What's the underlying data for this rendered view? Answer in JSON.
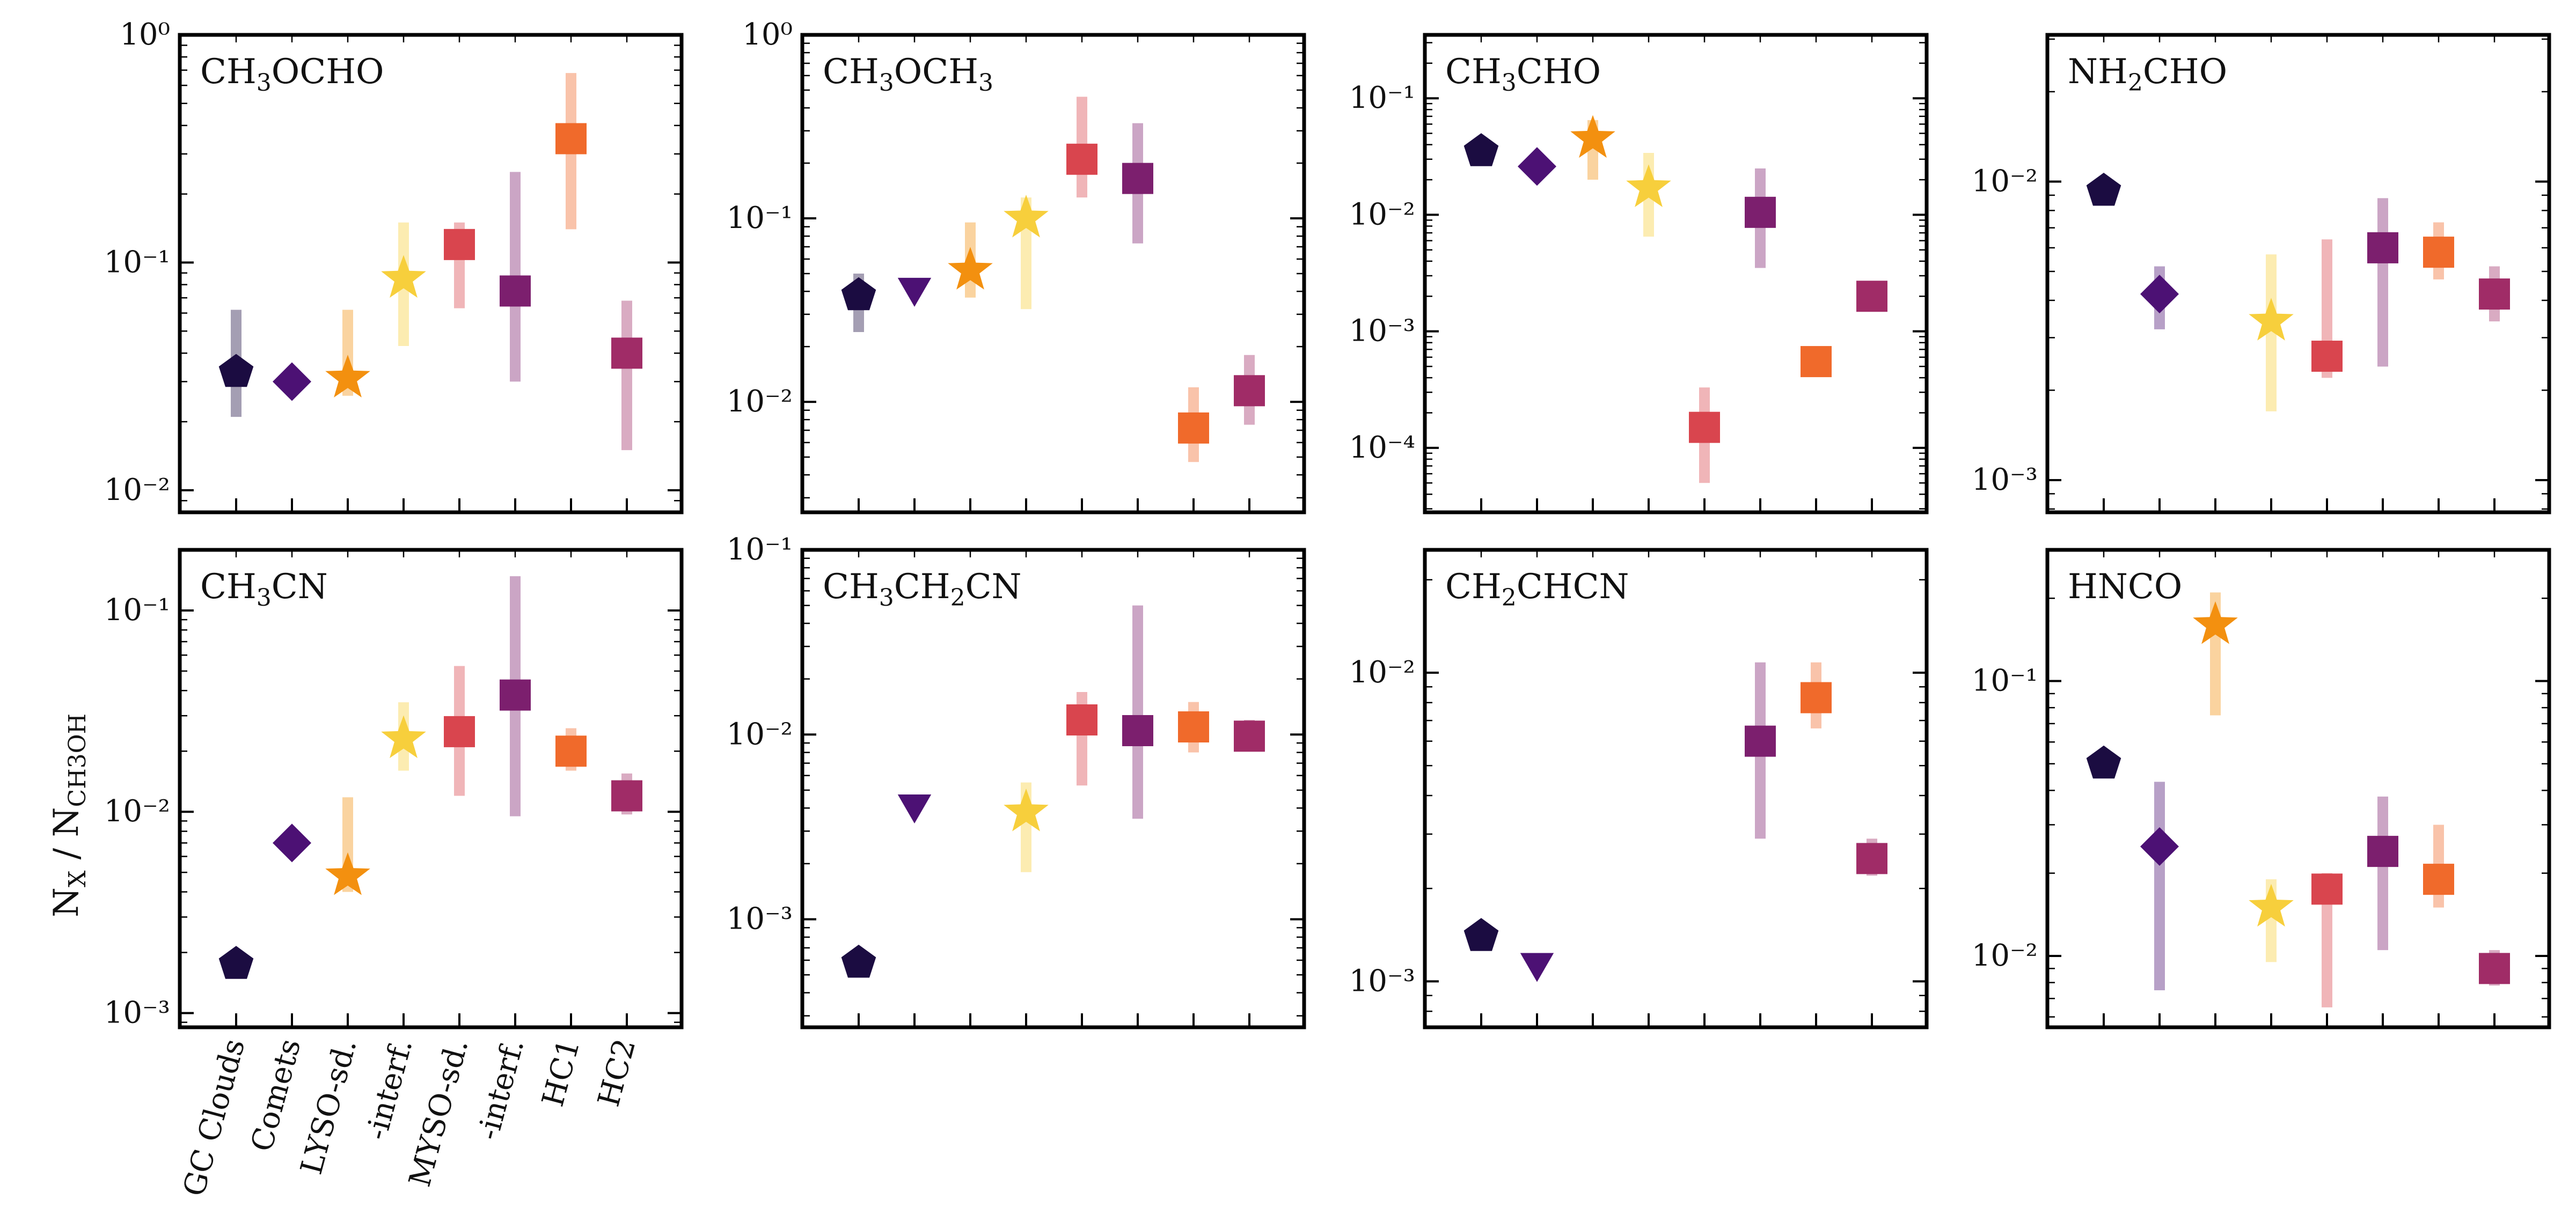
{
  "chart_data": {
    "type": "scatter",
    "layout": "2x4 grid of panels with shared categorical x-axis",
    "ylabel": "N_X / N_CH3OH",
    "ylabel_parts": {
      "main": "N",
      "sub1": "X",
      "sep": " / N",
      "sub2": "CH3OH"
    },
    "yscale": "log",
    "categories": [
      "GC Clouds",
      "Comets",
      "LYSO-sd.",
      "-interf.",
      "MYSO-sd.",
      "-interf.",
      "HC1",
      "HC2"
    ],
    "marker_legend": {
      "GC Clouds": "pentagon",
      "Comets": "diamond (triangle-down = upper limit)",
      "LYSO-sd.": "star",
      "LYSO-interf.": "star",
      "MYSO-sd.": "square",
      "MYSO-interf.": "square",
      "HC1": "square",
      "HC2": "square"
    },
    "colors": [
      "#1b0c41",
      "#4c1174",
      "#f3900f",
      "#f7cf3c",
      "#d9454e",
      "#7c1f6e",
      "#f06a2b",
      "#a02c67"
    ],
    "panels": [
      {
        "molecule": "CH3OCHO",
        "label_parts": [
          "CH",
          "3",
          "OCHO"
        ],
        "ylim": [
          0.008,
          1
        ],
        "ytick_decades": [
          -2,
          -1,
          0
        ],
        "points": [
          {
            "cat": 0,
            "value": 0.033,
            "low": 0.021,
            "high": 0.062,
            "marker": "pentagon"
          },
          {
            "cat": 1,
            "value": 0.03,
            "marker": "diamond"
          },
          {
            "cat": 2,
            "value": 0.031,
            "low": 0.026,
            "high": 0.062,
            "marker": "star"
          },
          {
            "cat": 3,
            "value": 0.085,
            "low": 0.043,
            "high": 0.15,
            "marker": "star"
          },
          {
            "cat": 4,
            "value": 0.12,
            "low": 0.063,
            "high": 0.15,
            "marker": "square"
          },
          {
            "cat": 5,
            "value": 0.075,
            "low": 0.03,
            "high": 0.25,
            "marker": "square"
          },
          {
            "cat": 6,
            "value": 0.35,
            "low": 0.14,
            "high": 0.68,
            "marker": "square"
          },
          {
            "cat": 7,
            "value": 0.04,
            "low": 0.015,
            "high": 0.068,
            "marker": "square"
          }
        ]
      },
      {
        "molecule": "CH3OCH3",
        "label_parts": [
          "CH",
          "3",
          "OCH",
          "3"
        ],
        "ylim": [
          0.0025,
          1
        ],
        "ytick_decades": [
          -2,
          -1,
          0
        ],
        "points": [
          {
            "cat": 0,
            "value": 0.038,
            "low": 0.024,
            "high": 0.05,
            "marker": "pentagon"
          },
          {
            "cat": 1,
            "value": 0.042,
            "marker": "triangle-down"
          },
          {
            "cat": 2,
            "value": 0.052,
            "low": 0.037,
            "high": 0.095,
            "marker": "star"
          },
          {
            "cat": 3,
            "value": 0.1,
            "low": 0.032,
            "high": 0.13,
            "marker": "star"
          },
          {
            "cat": 4,
            "value": 0.21,
            "low": 0.13,
            "high": 0.46,
            "marker": "square"
          },
          {
            "cat": 5,
            "value": 0.165,
            "low": 0.073,
            "high": 0.33,
            "marker": "square"
          },
          {
            "cat": 6,
            "value": 0.0072,
            "low": 0.0047,
            "high": 0.012,
            "marker": "square"
          },
          {
            "cat": 7,
            "value": 0.0115,
            "low": 0.0075,
            "high": 0.018,
            "marker": "square"
          }
        ]
      },
      {
        "molecule": "CH3CHO",
        "label_parts": [
          "CH",
          "3",
          "CHO"
        ],
        "ylim": [
          2.8e-05,
          0.35
        ],
        "ytick_decades": [
          -4,
          -3,
          -2,
          -1
        ],
        "points": [
          {
            "cat": 0,
            "value": 0.035,
            "marker": "pentagon"
          },
          {
            "cat": 1,
            "value": 0.026,
            "marker": "diamond"
          },
          {
            "cat": 2,
            "value": 0.045,
            "low": 0.02,
            "high": 0.065,
            "marker": "star"
          },
          {
            "cat": 3,
            "value": 0.017,
            "low": 0.0065,
            "high": 0.034,
            "marker": "star"
          },
          {
            "cat": 4,
            "value": 0.00015,
            "low": 5e-05,
            "high": 0.00033,
            "marker": "square"
          },
          {
            "cat": 5,
            "value": 0.0105,
            "low": 0.0035,
            "high": 0.025,
            "marker": "square"
          },
          {
            "cat": 6,
            "value": 0.00055,
            "marker": "square"
          },
          {
            "cat": 7,
            "value": 0.002,
            "marker": "square"
          }
        ]
      },
      {
        "molecule": "NH2CHO",
        "label_parts": [
          "NH",
          "2",
          "CHO"
        ],
        "ylim": [
          0.00078,
          0.031
        ],
        "ytick_decades": [
          -3,
          -2
        ],
        "points": [
          {
            "cat": 0,
            "value": 0.0093,
            "marker": "pentagon"
          },
          {
            "cat": 1,
            "value": 0.0042,
            "low": 0.0032,
            "high": 0.0052,
            "marker": "diamond"
          },
          {
            "cat": 3,
            "value": 0.0034,
            "low": 0.0017,
            "high": 0.0057,
            "marker": "star"
          },
          {
            "cat": 4,
            "value": 0.0026,
            "low": 0.0022,
            "high": 0.0064,
            "marker": "square"
          },
          {
            "cat": 5,
            "value": 0.006,
            "low": 0.0024,
            "high": 0.0088,
            "marker": "square"
          },
          {
            "cat": 6,
            "value": 0.0058,
            "low": 0.0047,
            "high": 0.0073,
            "marker": "square"
          },
          {
            "cat": 7,
            "value": 0.0042,
            "low": 0.0034,
            "high": 0.0052,
            "marker": "square"
          }
        ]
      },
      {
        "molecule": "CH3CN",
        "label_parts": [
          "CH",
          "3",
          "CN"
        ],
        "ylim": [
          0.00085,
          0.2
        ],
        "ytick_decades": [
          -3,
          -2,
          -1
        ],
        "points": [
          {
            "cat": 0,
            "value": 0.00175,
            "marker": "pentagon"
          },
          {
            "cat": 1,
            "value": 0.007,
            "low": 0.006,
            "high": 0.0082,
            "marker": "diamond"
          },
          {
            "cat": 2,
            "value": 0.0048,
            "low": 0.004,
            "high": 0.0118,
            "marker": "star"
          },
          {
            "cat": 3,
            "value": 0.023,
            "low": 0.016,
            "high": 0.035,
            "marker": "star"
          },
          {
            "cat": 4,
            "value": 0.025,
            "low": 0.012,
            "high": 0.053,
            "marker": "square"
          },
          {
            "cat": 5,
            "value": 0.038,
            "low": 0.0095,
            "high": 0.148,
            "marker": "square"
          },
          {
            "cat": 6,
            "value": 0.02,
            "low": 0.016,
            "high": 0.026,
            "marker": "square"
          },
          {
            "cat": 7,
            "value": 0.012,
            "low": 0.0097,
            "high": 0.0155,
            "marker": "square"
          }
        ]
      },
      {
        "molecule": "CH3CH2CN",
        "label_parts": [
          "CH",
          "3",
          "CH",
          "2",
          "CN"
        ],
        "ylim": [
          0.00026,
          0.1
        ],
        "ytick_decades": [
          -3,
          -2,
          -1
        ],
        "points": [
          {
            "cat": 0,
            "value": 0.00058,
            "marker": "pentagon"
          },
          {
            "cat": 1,
            "value": 0.0042,
            "marker": "triangle-down"
          },
          {
            "cat": 3,
            "value": 0.0038,
            "low": 0.0018,
            "high": 0.0055,
            "marker": "star"
          },
          {
            "cat": 4,
            "value": 0.012,
            "low": 0.0053,
            "high": 0.017,
            "marker": "square"
          },
          {
            "cat": 5,
            "value": 0.0105,
            "low": 0.0035,
            "high": 0.05,
            "marker": "square"
          },
          {
            "cat": 6,
            "value": 0.011,
            "low": 0.008,
            "high": 0.015,
            "marker": "square"
          },
          {
            "cat": 7,
            "value": 0.0098,
            "low": 0.0085,
            "high": 0.012,
            "marker": "square"
          }
        ]
      },
      {
        "molecule": "CH2CHCN",
        "label_parts": [
          "CH",
          "2",
          "CHCN"
        ],
        "ylim": [
          0.00071,
          0.025
        ],
        "ytick_decades": [
          -3,
          -2
        ],
        "points": [
          {
            "cat": 0,
            "value": 0.0014,
            "marker": "pentagon"
          },
          {
            "cat": 1,
            "value": 0.00115,
            "marker": "triangle-down"
          },
          {
            "cat": 5,
            "value": 0.006,
            "low": 0.0029,
            "high": 0.0108,
            "marker": "square"
          },
          {
            "cat": 6,
            "value": 0.0083,
            "low": 0.0066,
            "high": 0.0108,
            "marker": "square"
          },
          {
            "cat": 7,
            "value": 0.0025,
            "low": 0.0022,
            "high": 0.0029,
            "marker": "square"
          }
        ]
      },
      {
        "molecule": "HNCO",
        "label_parts": [
          "HNCO"
        ],
        "ylim": [
          0.0055,
          0.3
        ],
        "ytick_decades": [
          -2,
          -1
        ],
        "points": [
          {
            "cat": 0,
            "value": 0.05,
            "marker": "pentagon"
          },
          {
            "cat": 1,
            "value": 0.025,
            "low": 0.0075,
            "high": 0.043,
            "marker": "diamond"
          },
          {
            "cat": 2,
            "value": 0.16,
            "low": 0.075,
            "high": 0.21,
            "marker": "star"
          },
          {
            "cat": 3,
            "value": 0.015,
            "low": 0.0095,
            "high": 0.019,
            "marker": "star"
          },
          {
            "cat": 4,
            "value": 0.0175,
            "low": 0.0065,
            "high": 0.02,
            "marker": "square"
          },
          {
            "cat": 5,
            "value": 0.024,
            "low": 0.0105,
            "high": 0.038,
            "marker": "square"
          },
          {
            "cat": 6,
            "value": 0.019,
            "low": 0.015,
            "high": 0.03,
            "marker": "square"
          },
          {
            "cat": 7,
            "value": 0.009,
            "low": 0.0078,
            "high": 0.0105,
            "marker": "square"
          }
        ]
      }
    ]
  }
}
